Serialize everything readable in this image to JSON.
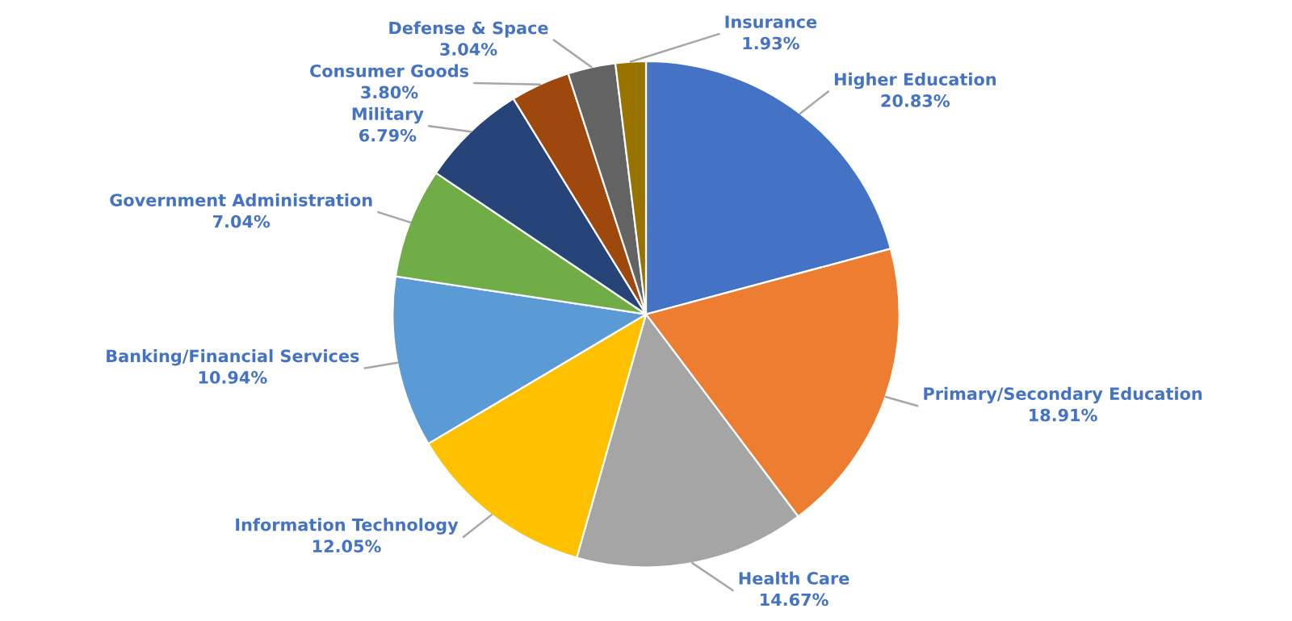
{
  "chart_data": {
    "type": "pie",
    "categories": [
      "Higher Education",
      "Primary/Secondary Education",
      "Health Care",
      "Information Technology",
      "Banking/Financial Services",
      "Government Administration",
      "Military",
      "Consumer Goods",
      "Defense & Space",
      "Insurance"
    ],
    "values": [
      20.83,
      18.91,
      14.67,
      12.05,
      10.94,
      7.04,
      6.79,
      3.8,
      3.04,
      1.93
    ],
    "value_labels": [
      "20.83%",
      "18.91%",
      "14.67%",
      "12.05%",
      "10.94%",
      "7.04%",
      "6.79%",
      "3.80%",
      "3.04%",
      "1.93%"
    ],
    "colors": [
      "#4472c4",
      "#ed7d31",
      "#a5a5a5",
      "#ffc000",
      "#5b9bd5",
      "#70ad47",
      "#264478",
      "#9e480e",
      "#636363",
      "#997300"
    ],
    "legend": false
  }
}
